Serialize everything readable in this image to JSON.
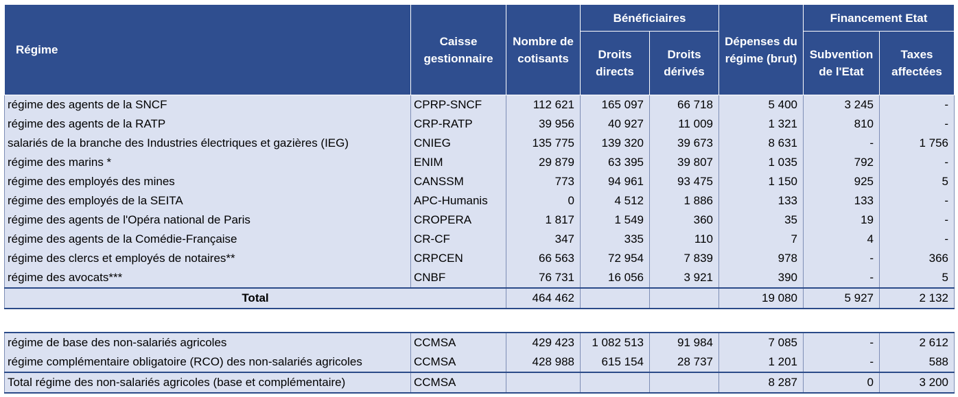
{
  "headers": {
    "regime": "Régime",
    "caisse": "Caisse gestionnaire",
    "cotisants": "Nombre de cotisants",
    "beneficiaires": "Bénéficiaires",
    "droits_directs": "Droits directs",
    "droits_derives": "Droits dérivés",
    "depenses": "Dépenses du régime (brut)",
    "financement": "Financement Etat",
    "subvention": "Subvention de l'Etat",
    "taxes": "Taxes affectées"
  },
  "rows": [
    {
      "regime": "régime des agents de la SNCF",
      "caisse": "CPRP-SNCF",
      "cotisants": "112 621",
      "directs": "165 097",
      "derives": "66 718",
      "depenses": "5 400",
      "subvention": "3 245",
      "taxes": "-"
    },
    {
      "regime": "régime des agents de la RATP",
      "caisse": "CRP-RATP",
      "cotisants": "39 956",
      "directs": "40 927",
      "derives": "11 009",
      "depenses": "1 321",
      "subvention": "810",
      "taxes": "-"
    },
    {
      "regime": "salariés de la branche des Industries électriques et gazières (IEG)",
      "caisse": "CNIEG",
      "cotisants": "135 775",
      "directs": "139 320",
      "derives": "39 673",
      "depenses": "8 631",
      "subvention": "-",
      "taxes": "1 756"
    },
    {
      "regime": "régime des marins *",
      "caisse": "ENIM",
      "cotisants": "29 879",
      "directs": "63 395",
      "derives": "39 807",
      "depenses": "1 035",
      "subvention": "792",
      "taxes": "-"
    },
    {
      "regime": "régime des employés des mines",
      "caisse": "CANSSM",
      "cotisants": "773",
      "directs": "94 961",
      "derives": "93 475",
      "depenses": "1 150",
      "subvention": "925",
      "taxes": "5"
    },
    {
      "regime": "régime des employés de la SEITA",
      "caisse": "APC-Humanis",
      "cotisants": "0",
      "directs": "4 512",
      "derives": "1 886",
      "depenses": "133",
      "subvention": "133",
      "taxes": "-"
    },
    {
      "regime": "régime des agents de l'Opéra national de Paris",
      "caisse": "CROPERA",
      "cotisants": "1 817",
      "directs": "1 549",
      "derives": "360",
      "depenses": "35",
      "subvention": "19",
      "taxes": "-"
    },
    {
      "regime": "régime des agents de la Comédie-Française",
      "caisse": "CR-CF",
      "cotisants": "347",
      "directs": "335",
      "derives": "110",
      "depenses": "7",
      "subvention": "4",
      "taxes": "-"
    },
    {
      "regime": "régime des clercs et employés de notaires**",
      "caisse": "CRPCEN",
      "cotisants": "66 563",
      "directs": "72 954",
      "derives": "7 839",
      "depenses": "978",
      "subvention": "-",
      "taxes": "366"
    },
    {
      "regime": "régime des avocats***",
      "caisse": "CNBF",
      "cotisants": "76 731",
      "directs": "16 056",
      "derives": "3 921",
      "depenses": "390",
      "subvention": "-",
      "taxes": "5"
    }
  ],
  "total": {
    "label": "Total",
    "cotisants": "464 462",
    "directs": "",
    "derives": "",
    "depenses": "19 080",
    "subvention": "5 927",
    "taxes": "2 132"
  },
  "agri_rows": [
    {
      "regime": "régime de base des non-salariés agricoles",
      "caisse": "CCMSA",
      "cotisants": "429 423",
      "directs": "1 082 513",
      "derives": "91 984",
      "depenses": "7 085",
      "subvention": "-",
      "taxes": "2 612"
    },
    {
      "regime": "régime complémentaire obligatoire (RCO) des non-salariés agricoles",
      "caisse": "CCMSA",
      "cotisants": "428 988",
      "directs": "615 154",
      "derives": "28 737",
      "depenses": "1 201",
      "subvention": "-",
      "taxes": "588"
    }
  ],
  "agri_total": {
    "label": "Total régime des non-salariés agricoles (base et complémentaire)",
    "caisse": "CCMSA",
    "cotisants": "",
    "directs": "",
    "derives": "",
    "depenses": "8 287",
    "subvention": "0",
    "taxes": "3 200"
  }
}
